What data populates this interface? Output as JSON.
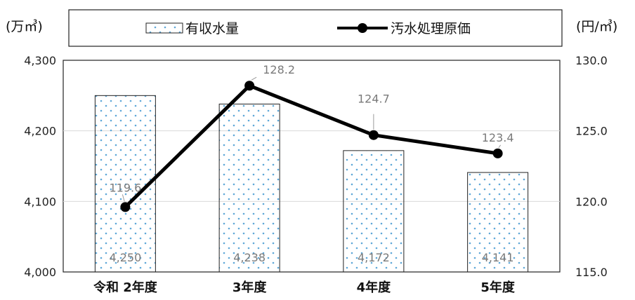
{
  "chart_data": {
    "type": "bar+line",
    "categories": [
      "令和 2年度",
      "3年度",
      "4年度",
      "5年度"
    ],
    "series": [
      {
        "name": "有収水量",
        "type": "bar",
        "axis": "left",
        "values": [
          4250,
          4238,
          4172,
          4141
        ],
        "labels": [
          "4,250",
          "4,238",
          "4,172",
          "4,141"
        ]
      },
      {
        "name": "汚水処理原価",
        "type": "line",
        "axis": "right",
        "values": [
          119.6,
          128.2,
          124.7,
          123.4
        ],
        "labels": [
          "119.6",
          "128.2",
          "124.7",
          "123.4"
        ]
      }
    ],
    "left_axis": {
      "unit": "(万㎥)",
      "ylim": [
        4000,
        4300
      ],
      "ticks": [
        4000,
        4100,
        4200,
        4300
      ],
      "tick_labels": [
        "4,000",
        "4,100",
        "4,200",
        "4,300"
      ]
    },
    "right_axis": {
      "unit": "(円/㎥)",
      "ylim": [
        115,
        130
      ],
      "ticks": [
        115,
        120,
        125,
        130
      ],
      "tick_labels": [
        "115.0",
        "120.0",
        "125.0",
        "130.0"
      ]
    },
    "grid": true,
    "legend": "top",
    "colors": {
      "dots": "#5fa8d8",
      "line": "#000000",
      "label": "#7a7a7a"
    }
  }
}
